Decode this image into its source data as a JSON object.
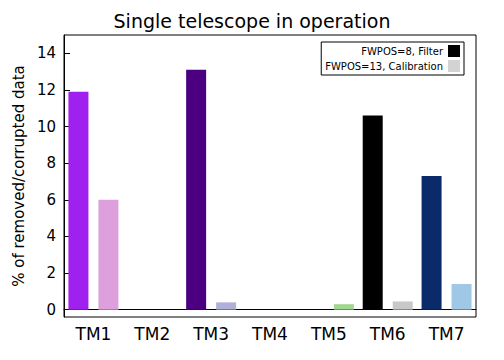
{
  "chart_data": {
    "type": "bar",
    "title": "Single telescope in operation",
    "y_label": "% of removed/corrupted data",
    "categories": [
      "TM1",
      "TM2",
      "TM3",
      "TM4",
      "TM5",
      "TM6",
      "TM7"
    ],
    "series": [
      {
        "name": "FWPOS=8, Filter",
        "color": "#000000",
        "colors": [
          "#a020f0",
          "#1e3cc8",
          "#4b0082",
          "#2e8b57",
          "#228b22",
          "#000000",
          "#0a2a6a"
        ],
        "values": [
          11.9,
          0,
          13.1,
          0,
          0,
          10.6,
          7.3
        ]
      },
      {
        "name": "FWPOS=13, Calibration",
        "color": "#d3d3d3",
        "colors": [
          "#dda0dd",
          "#a8b8f0",
          "#b0b0d8",
          "#a8d8c0",
          "#a0d890",
          "#c8c8c8",
          "#9ec8e6"
        ],
        "values": [
          6.0,
          0,
          0.4,
          0,
          0.3,
          0.45,
          1.4
        ]
      }
    ],
    "ylim": [
      -0.4,
      15
    ],
    "yticks": [
      0,
      2,
      4,
      6,
      8,
      10,
      12,
      14
    ],
    "grid": false,
    "legend": "upper right"
  }
}
